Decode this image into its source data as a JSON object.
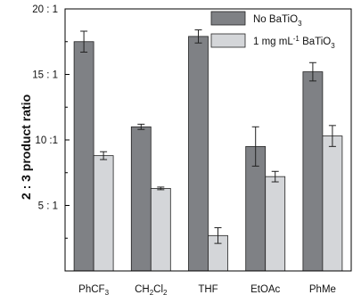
{
  "chart_data": {
    "type": "bar",
    "title": "",
    "xlabel": "",
    "ylabel": "2 : 3 product ratio",
    "ylim": [
      0,
      20
    ],
    "y_ticks": [
      {
        "value": 5,
        "label": "5 : 1"
      },
      {
        "value": 10,
        "label": "10 :1"
      },
      {
        "value": 15,
        "label": "15 : 1"
      },
      {
        "value": 20,
        "label": "20 : 1"
      }
    ],
    "categories": [
      {
        "name": "PhCF3",
        "base": "PhCF",
        "subs": [
          {
            "t": "3",
            "sub": true
          }
        ]
      },
      {
        "name": "CH2Cl2",
        "base": "CH",
        "subs": [
          {
            "t": "2",
            "sub": true
          },
          {
            "t": "Cl",
            "sub": false
          },
          {
            "t": "2",
            "sub": true
          }
        ]
      },
      {
        "name": "THF",
        "base": "THF",
        "subs": []
      },
      {
        "name": "EtOAc",
        "base": "EtOAc",
        "subs": []
      },
      {
        "name": "PhMe",
        "base": "PhMe",
        "subs": []
      }
    ],
    "series": [
      {
        "name": "No BaTiO3",
        "legend_parts": [
          {
            "t": "No BaTiO",
            "s": 0
          },
          {
            "t": "3",
            "s": 1
          }
        ],
        "color": "#7f8185",
        "values": [
          17.5,
          11.0,
          17.9,
          9.5,
          15.2
        ],
        "errors": [
          0.8,
          0.2,
          0.5,
          1.5,
          0.7
        ]
      },
      {
        "name": "1 mg mL-1 BaTiO3",
        "legend_parts": [
          {
            "t": "1 mg mL",
            "s": 0
          },
          {
            "t": "-1",
            "s": -1
          },
          {
            "t": " BaTiO",
            "s": 0
          },
          {
            "t": "3",
            "s": 1
          }
        ],
        "color": "#d4d6d9",
        "values": [
          8.8,
          6.3,
          2.7,
          7.2,
          10.3
        ],
        "errors": [
          0.3,
          0.1,
          0.6,
          0.4,
          0.8
        ]
      }
    ],
    "legend_position": "top-right",
    "grid": false
  }
}
